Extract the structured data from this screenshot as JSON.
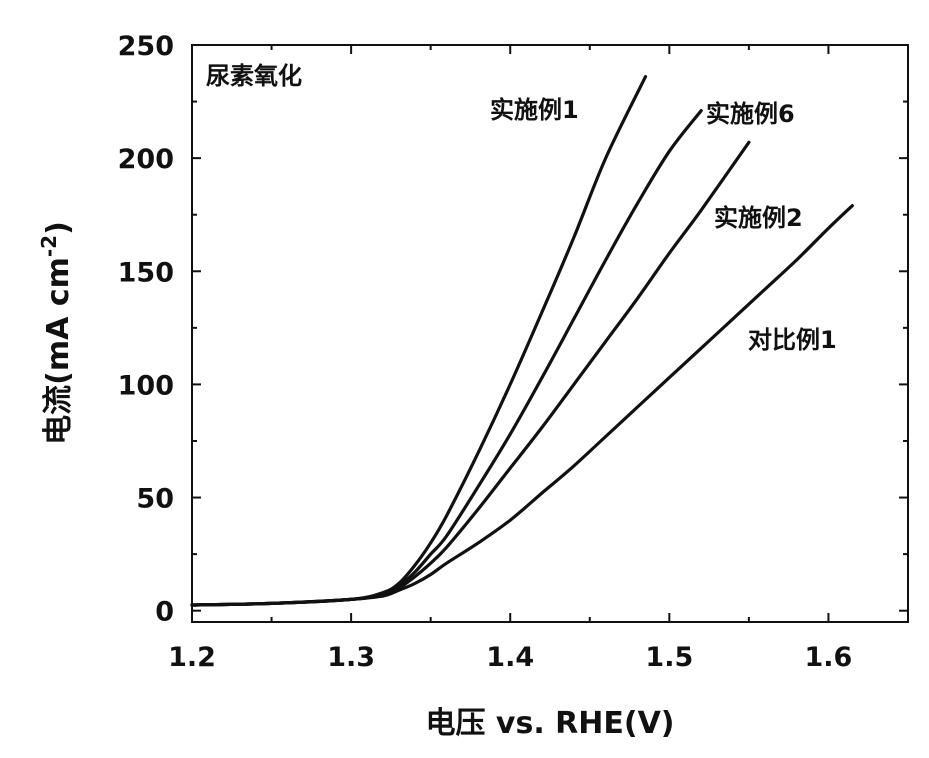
{
  "chart_data": {
    "type": "line",
    "annotation": "尿素氧化",
    "xlabel": "电压 vs. RHE(V)",
    "ylabel_main": "电流(mA cm",
    "ylabel_sup": "-2",
    "ylabel_close": ")",
    "xlim": [
      1.2,
      1.65
    ],
    "ylim": [
      -5,
      250
    ],
    "x_ticks": [
      1.2,
      1.3,
      1.4,
      1.5,
      1.6
    ],
    "x_tick_labels": [
      "1.2",
      "1.3",
      "1.4",
      "1.5",
      "1.6"
    ],
    "y_ticks": [
      0,
      50,
      100,
      150,
      200,
      250
    ],
    "y_tick_labels": [
      "0",
      "50",
      "100",
      "150",
      "200",
      "250"
    ],
    "grid": false,
    "series": [
      {
        "name": "实施例1",
        "points": [
          [
            1.2,
            2.5
          ],
          [
            1.25,
            3.2
          ],
          [
            1.3,
            5.0
          ],
          [
            1.32,
            8.0
          ],
          [
            1.33,
            12.0
          ],
          [
            1.34,
            20.0
          ],
          [
            1.35,
            30.0
          ],
          [
            1.36,
            42.0
          ],
          [
            1.38,
            70.0
          ],
          [
            1.4,
            100.0
          ],
          [
            1.42,
            132.0
          ],
          [
            1.44,
            165.0
          ],
          [
            1.46,
            200.0
          ],
          [
            1.485,
            236.0
          ]
        ]
      },
      {
        "name": "实施例6",
        "points": [
          [
            1.2,
            2.5
          ],
          [
            1.25,
            3.2
          ],
          [
            1.3,
            5.0
          ],
          [
            1.32,
            7.5
          ],
          [
            1.33,
            11.0
          ],
          [
            1.34,
            17.0
          ],
          [
            1.35,
            25.0
          ],
          [
            1.36,
            33.0
          ],
          [
            1.38,
            55.0
          ],
          [
            1.4,
            78.0
          ],
          [
            1.42,
            103.0
          ],
          [
            1.44,
            129.0
          ],
          [
            1.46,
            155.0
          ],
          [
            1.48,
            180.0
          ],
          [
            1.5,
            203.0
          ],
          [
            1.52,
            221.0
          ]
        ]
      },
      {
        "name": "实施例2",
        "points": [
          [
            1.2,
            2.5
          ],
          [
            1.25,
            3.2
          ],
          [
            1.3,
            5.0
          ],
          [
            1.32,
            7.0
          ],
          [
            1.33,
            10.0
          ],
          [
            1.34,
            15.0
          ],
          [
            1.35,
            21.0
          ],
          [
            1.36,
            28.0
          ],
          [
            1.38,
            45.0
          ],
          [
            1.4,
            63.0
          ],
          [
            1.42,
            81.0
          ],
          [
            1.44,
            100.0
          ],
          [
            1.46,
            119.0
          ],
          [
            1.48,
            138.0
          ],
          [
            1.5,
            158.0
          ],
          [
            1.52,
            177.0
          ],
          [
            1.55,
            207.0
          ]
        ]
      },
      {
        "name": "对比例1",
        "points": [
          [
            1.2,
            2.5
          ],
          [
            1.25,
            3.2
          ],
          [
            1.3,
            5.0
          ],
          [
            1.32,
            6.5
          ],
          [
            1.33,
            9.0
          ],
          [
            1.34,
            12.0
          ],
          [
            1.35,
            16.0
          ],
          [
            1.36,
            21.0
          ],
          [
            1.38,
            30.0
          ],
          [
            1.4,
            40.0
          ],
          [
            1.42,
            52.0
          ],
          [
            1.44,
            64.0
          ],
          [
            1.46,
            77.0
          ],
          [
            1.48,
            90.0
          ],
          [
            1.5,
            103.0
          ],
          [
            1.52,
            116.0
          ],
          [
            1.54,
            129.0
          ],
          [
            1.56,
            142.0
          ],
          [
            1.58,
            155.0
          ],
          [
            1.6,
            169.0
          ],
          [
            1.615,
            179.0
          ]
        ]
      }
    ]
  }
}
